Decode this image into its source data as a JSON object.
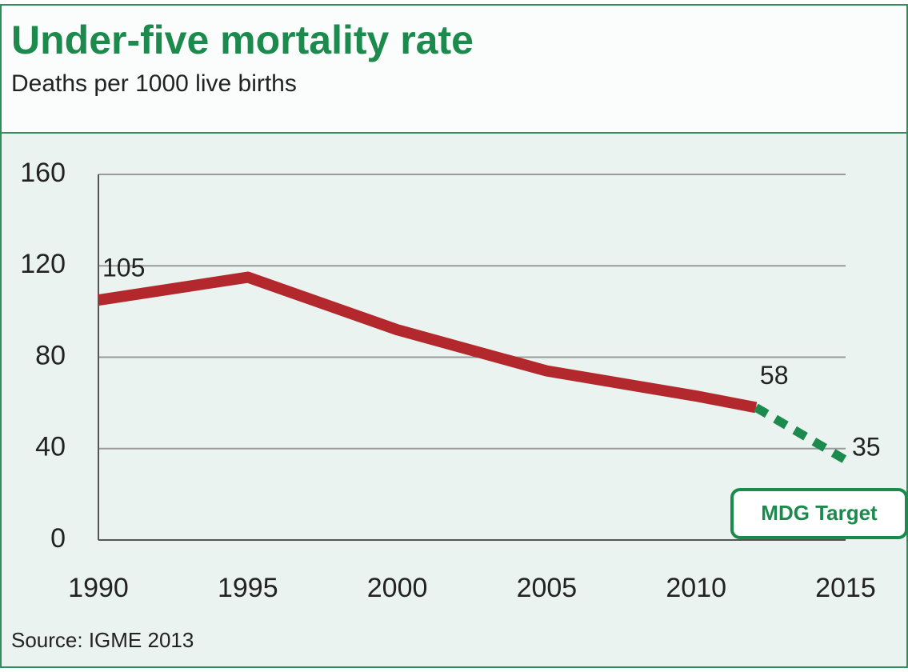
{
  "chart_data": {
    "type": "line",
    "title": "Under-five mortality rate",
    "subtitle": "Deaths per 1000 live births",
    "source": "Source: IGME 2013",
    "x": [
      1990,
      1995,
      2000,
      2005,
      2010,
      2012,
      2015
    ],
    "series": [
      {
        "color": "#b3282d",
        "dashed": false,
        "labeled": [
          0,
          5
        ],
        "values": [
          105,
          115,
          92,
          74,
          63,
          58,
          null
        ]
      },
      {
        "name": "MDG Target",
        "color": "#1c8a4c",
        "dashed": true,
        "labeled": [
          6
        ],
        "values": [
          null,
          null,
          null,
          null,
          null,
          58,
          35
        ]
      }
    ],
    "xlim": [
      1990,
      2015
    ],
    "xticks": [
      1990,
      1995,
      2000,
      2005,
      2010,
      2015
    ],
    "ylim": [
      0,
      160
    ],
    "yticks": [
      0,
      40,
      80,
      120,
      160
    ],
    "grid": true
  }
}
